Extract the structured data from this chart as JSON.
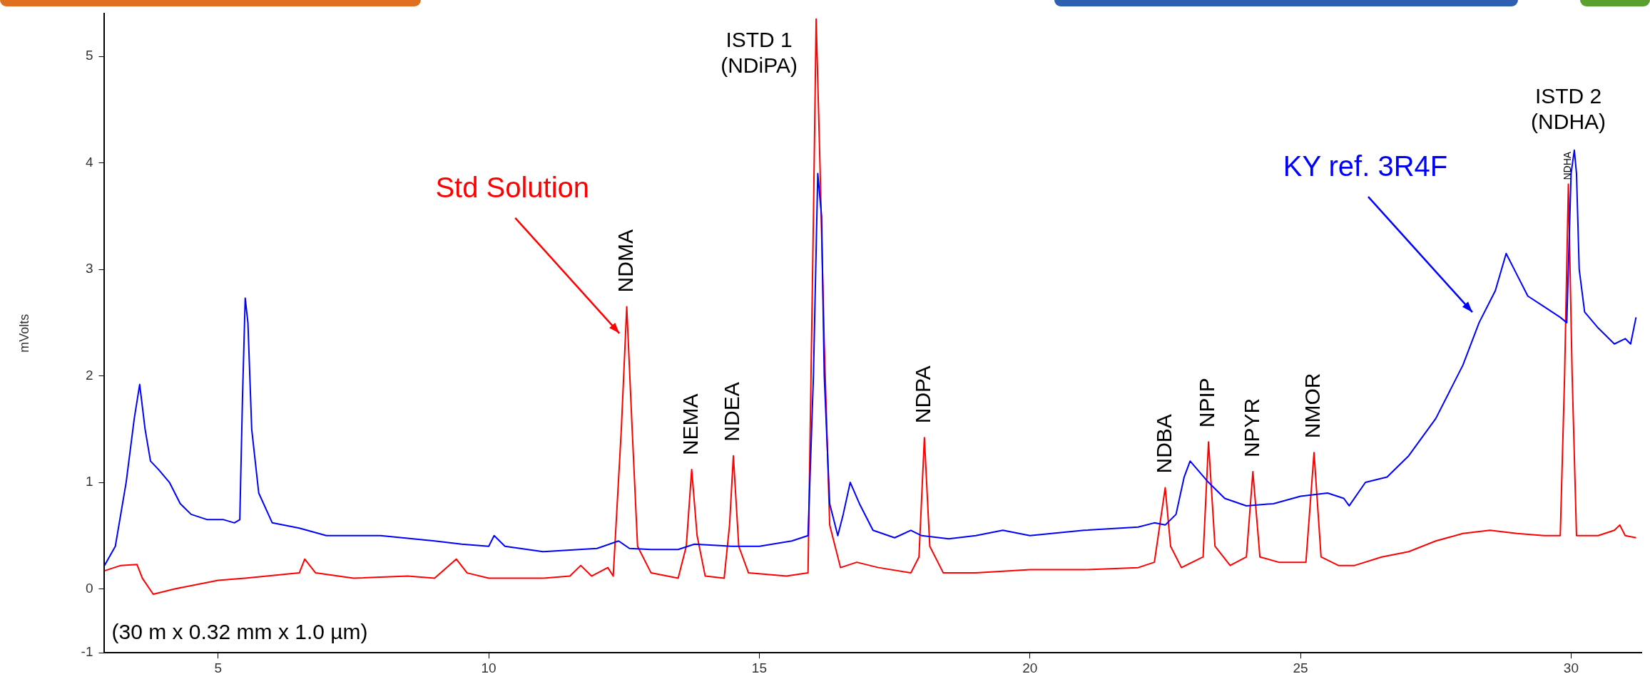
{
  "chart_data": {
    "type": "line",
    "ylabel": "mVolts",
    "xlim": [
      2.9,
      31.3
    ],
    "xticks": [
      5,
      10,
      15,
      20,
      25,
      30
    ],
    "ylim": [
      -0.6,
      5.4
    ],
    "yticks": [
      {
        "value": -0.6,
        "label": "-1"
      },
      0,
      1,
      2,
      3,
      4,
      5
    ],
    "grid": false,
    "legend": false,
    "marker": "none",
    "line_style": "solid",
    "series": [
      {
        "name": "KY ref. 3R4F",
        "color": "#0000ff",
        "x": [
          2.9,
          3.1,
          3.3,
          3.45,
          3.55,
          3.65,
          3.75,
          3.9,
          4.1,
          4.3,
          4.5,
          4.8,
          5.1,
          5.3,
          5.4,
          5.45,
          5.5,
          5.55,
          5.62,
          5.75,
          6.0,
          6.5,
          7.0,
          8.0,
          9.0,
          9.5,
          10.0,
          10.1,
          10.3,
          11.0,
          12.0,
          12.4,
          12.6,
          13.0,
          13.5,
          13.8,
          14.5,
          15.0,
          15.6,
          15.9,
          16.0,
          16.08,
          16.15,
          16.2,
          16.3,
          16.45,
          16.55,
          16.68,
          16.85,
          17.1,
          17.5,
          17.8,
          18.0,
          18.5,
          19.0,
          19.5,
          20.0,
          21.0,
          22.0,
          22.3,
          22.5,
          22.7,
          22.85,
          22.96,
          23.3,
          23.6,
          24.0,
          24.5,
          25.0,
          25.5,
          25.8,
          25.9,
          26.2,
          26.6,
          27.0,
          27.5,
          28.0,
          28.3,
          28.6,
          28.8,
          29.0,
          29.2,
          29.5,
          29.8,
          29.92,
          30.0,
          30.06,
          30.1,
          30.15,
          30.25,
          30.5,
          30.8,
          31.0,
          31.1,
          31.2
        ],
        "values": [
          0.22,
          0.4,
          1.0,
          1.6,
          1.92,
          1.5,
          1.2,
          1.12,
          1.0,
          0.8,
          0.7,
          0.65,
          0.65,
          0.62,
          0.65,
          1.8,
          2.73,
          2.5,
          1.5,
          0.9,
          0.62,
          0.57,
          0.5,
          0.5,
          0.45,
          0.42,
          0.4,
          0.5,
          0.4,
          0.35,
          0.38,
          0.45,
          0.38,
          0.37,
          0.37,
          0.42,
          0.4,
          0.4,
          0.45,
          0.5,
          2.0,
          3.9,
          3.5,
          2.0,
          0.8,
          0.5,
          0.7,
          1.0,
          0.8,
          0.55,
          0.48,
          0.55,
          0.5,
          0.47,
          0.5,
          0.55,
          0.5,
          0.55,
          0.58,
          0.62,
          0.6,
          0.7,
          1.05,
          1.2,
          1.0,
          0.85,
          0.78,
          0.8,
          0.87,
          0.9,
          0.85,
          0.78,
          1.0,
          1.05,
          1.25,
          1.6,
          2.1,
          2.5,
          2.8,
          3.15,
          2.95,
          2.75,
          2.65,
          2.55,
          2.5,
          3.9,
          4.12,
          3.9,
          3.0,
          2.6,
          2.45,
          2.3,
          2.35,
          2.3,
          2.55
        ]
      },
      {
        "name": "Std Solution",
        "color": "#ff0000",
        "x": [
          2.9,
          3.2,
          3.5,
          3.6,
          3.8,
          4.2,
          5.0,
          5.5,
          6.5,
          6.6,
          6.8,
          7.5,
          8.5,
          9.0,
          9.4,
          9.6,
          10.0,
          11.0,
          11.5,
          11.7,
          11.9,
          12.2,
          12.3,
          12.45,
          12.55,
          12.65,
          12.75,
          13.0,
          13.5,
          13.65,
          13.75,
          13.85,
          14.0,
          14.35,
          14.45,
          14.52,
          14.62,
          14.8,
          15.5,
          15.9,
          16.0,
          16.05,
          16.12,
          16.2,
          16.3,
          16.5,
          16.8,
          17.2,
          17.8,
          17.95,
          18.05,
          18.15,
          18.4,
          19.0,
          20.0,
          21.0,
          22.0,
          22.3,
          22.5,
          22.6,
          22.8,
          23.2,
          23.3,
          23.42,
          23.7,
          24.0,
          24.12,
          24.25,
          24.6,
          25.1,
          25.25,
          25.38,
          25.7,
          26.0,
          26.5,
          27.0,
          27.5,
          28.0,
          28.5,
          29.0,
          29.5,
          29.8,
          29.88,
          29.95,
          30.02,
          30.1,
          30.5,
          30.8,
          30.9,
          31.0,
          31.2
        ],
        "values": [
          0.17,
          0.22,
          0.23,
          0.1,
          -0.05,
          0.0,
          0.08,
          0.1,
          0.15,
          0.28,
          0.15,
          0.1,
          0.12,
          0.1,
          0.28,
          0.15,
          0.1,
          0.1,
          0.12,
          0.22,
          0.12,
          0.2,
          0.12,
          1.5,
          2.65,
          1.5,
          0.4,
          0.15,
          0.1,
          0.4,
          1.12,
          0.5,
          0.12,
          0.1,
          0.6,
          1.25,
          0.4,
          0.15,
          0.12,
          0.15,
          3.5,
          5.35,
          4.0,
          2.3,
          0.6,
          0.2,
          0.25,
          0.2,
          0.15,
          0.3,
          1.42,
          0.4,
          0.15,
          0.15,
          0.18,
          0.18,
          0.2,
          0.25,
          0.95,
          0.4,
          0.2,
          0.3,
          1.38,
          0.4,
          0.22,
          0.3,
          1.1,
          0.3,
          0.25,
          0.25,
          1.28,
          0.3,
          0.22,
          0.22,
          0.3,
          0.35,
          0.45,
          0.52,
          0.55,
          0.52,
          0.5,
          0.5,
          2.0,
          3.8,
          2.0,
          0.5,
          0.5,
          0.55,
          0.6,
          0.5,
          0.48
        ]
      }
    ],
    "annotations": [
      {
        "text": "NDMA",
        "x": 12.55,
        "y": 2.65
      },
      {
        "text": "NEMA",
        "x": 13.75,
        "y": 1.12
      },
      {
        "text": "NDEA",
        "x": 14.52,
        "y": 1.25
      },
      {
        "text": "ISTD 1\n(NDiPA)",
        "x": 16.05,
        "y": 5.35
      },
      {
        "text": "NDPA",
        "x": 18.05,
        "y": 1.42
      },
      {
        "text": "NDBA",
        "x": 22.5,
        "y": 0.95
      },
      {
        "text": "NPIP",
        "x": 23.3,
        "y": 1.38
      },
      {
        "text": "NPYR",
        "x": 24.12,
        "y": 1.1
      },
      {
        "text": "NMOR",
        "x": 25.25,
        "y": 1.28
      },
      {
        "text": "ISTD 2\n(NDHA)",
        "x": 29.95,
        "y": 3.8
      },
      {
        "text": "NDHA",
        "x": 29.95,
        "y": 3.8
      },
      "(30 m x 0.32 mm x 1.0 µm)"
    ]
  }
}
